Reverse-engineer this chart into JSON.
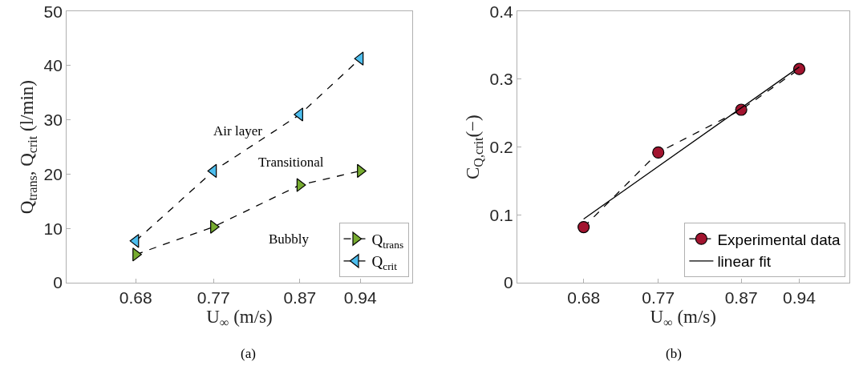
{
  "chart_data": [
    {
      "type": "line",
      "xlabel": "U$_{∞}$ (m/s)",
      "ylabel": "Q$_{trans}$, Q$_{crit}$ (l/min)",
      "x": [
        0.68,
        0.77,
        0.87,
        0.94
      ],
      "xlim": [
        0.6,
        1.0
      ],
      "xticks": [
        0.68,
        0.77,
        0.87,
        0.94
      ],
      "ylim": [
        0,
        50
      ],
      "yticks": [
        0,
        10,
        20,
        30,
        40,
        50
      ],
      "legend": "bottom right",
      "line_style": "dashed",
      "series": [
        {
          "name": "Q$_{trans}$",
          "color": "#77ac30",
          "marker": "triangle-right",
          "values": [
            5.2,
            10.3,
            18.0,
            20.6
          ]
        },
        {
          "name": "Q$_{crit}$",
          "color": "#4dbeee",
          "marker": "triangle-left",
          "values": [
            7.7,
            20.6,
            31.0,
            41.3
          ]
        }
      ],
      "annotations": [
        "Air layer",
        "Transitional",
        "Bubbly",
        "(a)"
      ]
    },
    {
      "type": "line",
      "xlabel": "U$_{∞}$ (m/s)",
      "ylabel": "C$_{Q,crit}$(−)",
      "x": [
        0.68,
        0.77,
        0.87,
        0.94
      ],
      "xlim": [
        0.6,
        1.0
      ],
      "xticks": [
        0.68,
        0.77,
        0.87,
        0.94
      ],
      "ylim": [
        0,
        0.4
      ],
      "yticks": [
        0,
        0.1,
        0.2,
        0.3,
        0.4
      ],
      "legend": "bottom right",
      "series": [
        {
          "name": "Experimental data",
          "color": "#a2142f",
          "marker": "circle",
          "line_style": "dashed",
          "values": [
            0.082,
            0.192,
            0.255,
            0.315
          ]
        },
        {
          "name": "linear fit",
          "type": "line",
          "color": "#000000",
          "marker": "none",
          "line_style": "solid",
          "x": [
            0.68,
            0.94
          ],
          "values": [
            0.094,
            0.318
          ]
        }
      ],
      "annotations": [
        "(b)"
      ]
    }
  ]
}
